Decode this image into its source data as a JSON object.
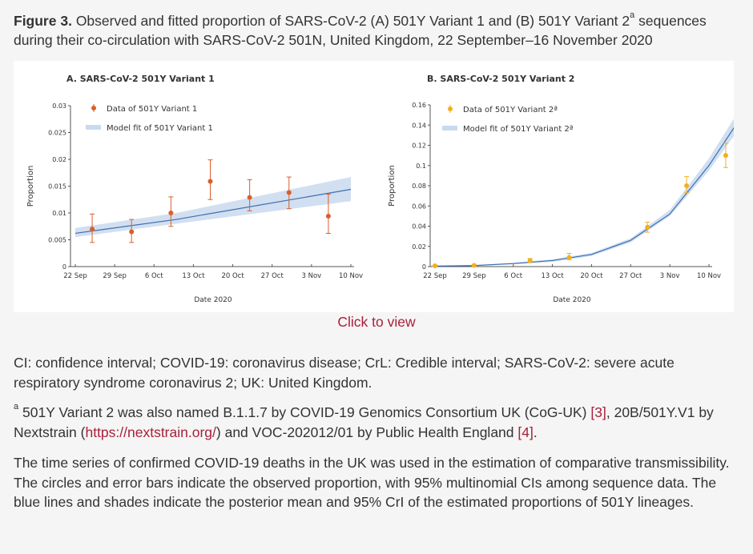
{
  "caption": {
    "figure_label": "Figure 3.",
    "text_part1": "Observed and fitted proportion of SARS-CoV-2 (A) 501Y Variant 1 and (B) 501Y Variant 2",
    "superscript": "a",
    "text_part2": "sequences during their co-circulation with SARS-CoV-2 501N, United Kingdom, 22 September–16 November 2020"
  },
  "click_to_view": "Click to view",
  "abbreviations": "CI: confidence interval; COVID-19: coronavirus disease; CrL: Credible interval; SARS-CoV-2: severe acute respiratory syndrome coronavirus 2; UK: United Kingdom.",
  "footnote": {
    "marker": "a",
    "text1": "501Y Variant 2 was also named B.1.1.7 by COVID-19 Genomics Consortium UK (CoG-UK)",
    "ref1": "[3]",
    "text2": ", 20B/501Y.V1 by Nextstrain (",
    "link": "https://nextstrain.org/",
    "text3": ") and VOC-202012/01 by Public Health England",
    "ref2": "[4]",
    "text4": "."
  },
  "description": "The time series of confirmed COVID-19 deaths in the UK was used in the estimation of comparative transmissibility. The circles and error bars indicate the observed proportion, with 95% multinomial CIs among sequence data. The blue lines and shades indicate the posterior mean and 95% CrI of the estimated proportions of 501Y lineages.",
  "colors": {
    "variant1_point": "#d95f2b",
    "variant2_point": "#f2b01e",
    "fit_line": "#3b6fb0",
    "fit_band": "#c9d9ef",
    "link": "#a8203a"
  },
  "chart_data": [
    {
      "type": "scatter",
      "title": "A. SARS-CoV-2 501Y Variant 1",
      "xlabel": "Date 2020",
      "ylabel": "Proportion",
      "x_ticks": [
        "22 Sep",
        "29 Sep",
        "6 Oct",
        "13 Oct",
        "20 Oct",
        "27 Oct",
        "3 Nov",
        "10 Nov"
      ],
      "y_ticks": [
        "0",
        "0.005",
        "0.01",
        "0.015",
        "0.02",
        "0.025",
        "0.03"
      ],
      "ylim": [
        0,
        0.03
      ],
      "legend": [
        "Data of 501Y Variant 1",
        "Model fit of 501Y Variant 1"
      ],
      "legend_position": "top-left",
      "observed": [
        {
          "x": "2020-09-25",
          "y": 0.007,
          "lo": 0.0045,
          "hi": 0.0098
        },
        {
          "x": "2020-10-02",
          "y": 0.0065,
          "lo": 0.0045,
          "hi": 0.0088
        },
        {
          "x": "2020-10-09",
          "y": 0.01,
          "lo": 0.0075,
          "hi": 0.013
        },
        {
          "x": "2020-10-16",
          "y": 0.0159,
          "lo": 0.0125,
          "hi": 0.0199
        },
        {
          "x": "2020-10-23",
          "y": 0.0129,
          "lo": 0.0104,
          "hi": 0.0162
        },
        {
          "x": "2020-10-30",
          "y": 0.0138,
          "lo": 0.0108,
          "hi": 0.0167
        },
        {
          "x": "2020-11-06",
          "y": 0.0094,
          "lo": 0.0062,
          "hi": 0.0135
        }
      ],
      "fit": {
        "x": [
          "2020-09-22",
          "2020-10-10",
          "2020-11-10"
        ],
        "mean": [
          0.0062,
          0.0088,
          0.0144
        ],
        "lo": [
          0.0055,
          0.008,
          0.0122
        ],
        "hi": [
          0.0072,
          0.01,
          0.0167
        ]
      }
    },
    {
      "type": "scatter",
      "title": "B. SARS-CoV-2 501Y Variant 2",
      "xlabel": "Date 2020",
      "ylabel": "Proportion",
      "x_ticks": [
        "22 Sep",
        "29 Sep",
        "6 Oct",
        "13 Oct",
        "20 Oct",
        "27 Oct",
        "3 Nov",
        "10 Nov"
      ],
      "y_ticks": [
        "0",
        "0.02",
        "0.04",
        "0.06",
        "0.08",
        "0.1",
        "0.12",
        "0.14",
        "0.16"
      ],
      "ylim": [
        0,
        0.16
      ],
      "legend": [
        "Data of 501Y Variant 2ª",
        "Model fit of 501Y Variant 2ª"
      ],
      "legend_position": "top-left",
      "observed": [
        {
          "x": "2020-09-22",
          "y": 0.0008,
          "lo": 0.0,
          "hi": 0.0016
        },
        {
          "x": "2020-09-29",
          "y": 0.0012,
          "lo": 0.0005,
          "hi": 0.002
        },
        {
          "x": "2020-10-09",
          "y": 0.006,
          "lo": 0.004,
          "hi": 0.008
        },
        {
          "x": "2020-10-16",
          "y": 0.009,
          "lo": 0.0068,
          "hi": 0.013
        },
        {
          "x": "2020-10-30",
          "y": 0.039,
          "lo": 0.034,
          "hi": 0.044
        },
        {
          "x": "2020-11-06",
          "y": 0.08,
          "lo": 0.073,
          "hi": 0.089
        },
        {
          "x": "2020-11-13",
          "y": 0.11,
          "lo": 0.098,
          "hi": 0.122
        }
      ],
      "fit": {
        "x": [
          "2020-09-22",
          "2020-09-29",
          "2020-10-06",
          "2020-10-13",
          "2020-10-20",
          "2020-10-27",
          "2020-11-03",
          "2020-11-10",
          "2020-11-16"
        ],
        "mean": [
          0.0005,
          0.001,
          0.003,
          0.006,
          0.012,
          0.026,
          0.052,
          0.1,
          0.15
        ],
        "lo": [
          0.0003,
          0.0007,
          0.0022,
          0.0048,
          0.0105,
          0.024,
          0.05,
          0.095,
          0.141
        ],
        "hi": [
          0.0008,
          0.0014,
          0.0038,
          0.0072,
          0.0135,
          0.028,
          0.056,
          0.107,
          0.16
        ]
      }
    }
  ]
}
